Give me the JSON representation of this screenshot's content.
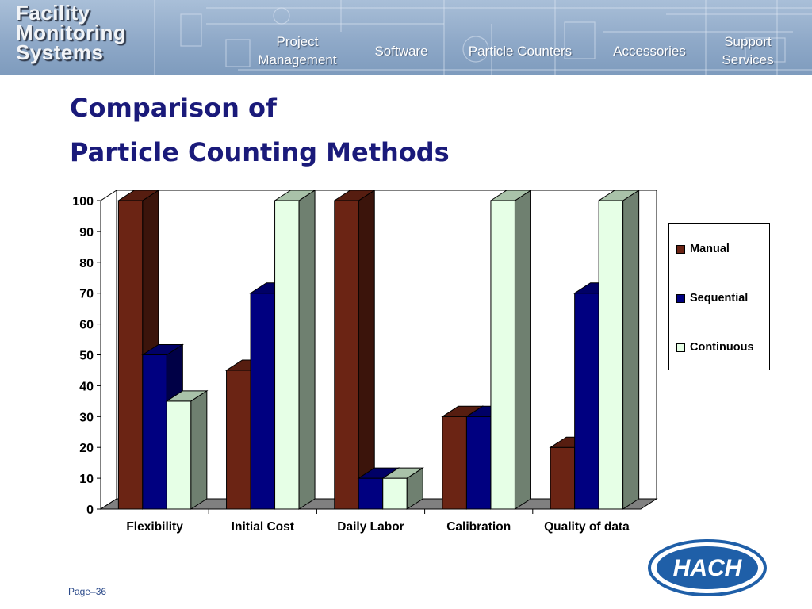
{
  "brand": {
    "lines": [
      "Facility",
      "Monitoring",
      "Systems"
    ]
  },
  "nav": {
    "items": [
      {
        "lines": [
          "Project",
          "Management"
        ]
      },
      {
        "lines": [
          "Software"
        ]
      },
      {
        "lines": [
          "Particle Counters"
        ]
      },
      {
        "lines": [
          "Accessories"
        ]
      },
      {
        "lines": [
          "Support",
          "Services"
        ]
      }
    ]
  },
  "slide": {
    "title_line1": "Comparison of",
    "title_line2": "Particle Counting Methods"
  },
  "chart_data": {
    "type": "bar",
    "style": "3d-clustered",
    "categories": [
      "Flexibility",
      "Initial Cost",
      "Daily Labor",
      "Calibration",
      "Quality of data"
    ],
    "series": [
      {
        "name": "Manual",
        "values": [
          100,
          45,
          100,
          30,
          20
        ],
        "color": "#6b2414"
      },
      {
        "name": "Sequential",
        "values": [
          50,
          70,
          10,
          30,
          70
        ],
        "color": "#000080"
      },
      {
        "name": "Continuous",
        "values": [
          35,
          100,
          10,
          100,
          100
        ],
        "color": "#e6ffe6"
      }
    ],
    "ylim": [
      0,
      100
    ],
    "yticks": [
      "0",
      "10",
      "20",
      "30",
      "40",
      "50",
      "60",
      "70",
      "80",
      "90",
      "100"
    ],
    "grid": false,
    "legend": "right"
  },
  "logo": {
    "text": "HACH"
  },
  "footer": {
    "page": "Page–36"
  }
}
